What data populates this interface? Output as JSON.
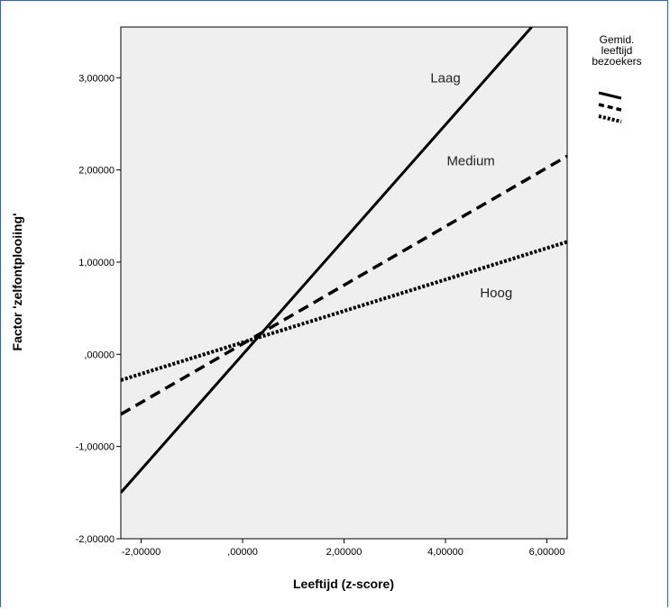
{
  "chart_data": {
    "type": "line",
    "xlabel": "Leeftijd (z-score)",
    "ylabel": "Factor 'zelfontplooiing'",
    "xlim": [
      -2.4,
      6.4
    ],
    "ylim": [
      -2.0,
      3.55
    ],
    "x_ticks": [
      -2,
      0,
      2,
      4,
      6
    ],
    "x_tick_labels": [
      "-2,00000",
      ",00000",
      "2,00000",
      "4,00000",
      "6,00000"
    ],
    "y_ticks": [
      -2,
      -1,
      0,
      1,
      2,
      3
    ],
    "y_tick_labels": [
      "-2,00000",
      "-1,00000",
      ",00000",
      "1,00000",
      "2,00000",
      "3,00000"
    ],
    "legend": {
      "title_lines": [
        "Gemid.",
        "leeftijd",
        "bezoekers"
      ],
      "placement": "top-right"
    },
    "series": [
      {
        "name": "Laag",
        "style": "solid",
        "x": [
          -2.4,
          5.7
        ],
        "y": [
          -1.5,
          3.55
        ],
        "label_x": 4.0,
        "label_y": 2.95
      },
      {
        "name": "Medium",
        "style": "dashed",
        "x": [
          -2.4,
          6.4
        ],
        "y": [
          -0.65,
          2.15
        ],
        "label_x": 4.5,
        "label_y": 2.05
      },
      {
        "name": "Hoog",
        "style": "dotted",
        "x": [
          -2.4,
          6.4
        ],
        "y": [
          -0.28,
          1.22
        ],
        "label_x": 5.0,
        "label_y": 0.62
      }
    ],
    "colors": {
      "line": "#000000",
      "plot_background": "#efefef",
      "frame": "#3d5ea8"
    }
  }
}
